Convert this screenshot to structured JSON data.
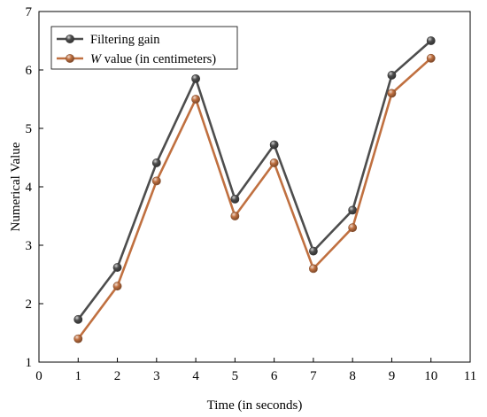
{
  "chart_data": {
    "type": "line",
    "title": "",
    "xlabel": "Time (in seconds)",
    "ylabel": "Numerical Value",
    "xlim": [
      0,
      11
    ],
    "ylim": [
      1,
      7
    ],
    "x_ticks": [
      0,
      1,
      2,
      3,
      4,
      5,
      6,
      7,
      8,
      9,
      10,
      11
    ],
    "y_ticks": [
      1,
      2,
      3,
      4,
      5,
      6,
      7
    ],
    "x": [
      1,
      2,
      3,
      4,
      5,
      6,
      7,
      8,
      9,
      10
    ],
    "grid": false,
    "legend_position": "top-left",
    "series": [
      {
        "name": "Filtering gain",
        "name_parts": [
          {
            "text": "Filtering gain",
            "italic": false
          }
        ],
        "color": "#4d4d4d",
        "values": [
          1.73,
          2.62,
          4.41,
          5.85,
          3.79,
          4.72,
          2.9,
          3.6,
          5.91,
          6.5
        ]
      },
      {
        "name": "W value (in centimeters)",
        "name_parts": [
          {
            "text": "W",
            "italic": true
          },
          {
            "text": " value (in centimeters)",
            "italic": false
          }
        ],
        "color": "#c07040",
        "values": [
          1.4,
          2.3,
          4.1,
          5.5,
          3.5,
          4.41,
          2.6,
          3.3,
          5.6,
          6.2
        ]
      }
    ]
  }
}
